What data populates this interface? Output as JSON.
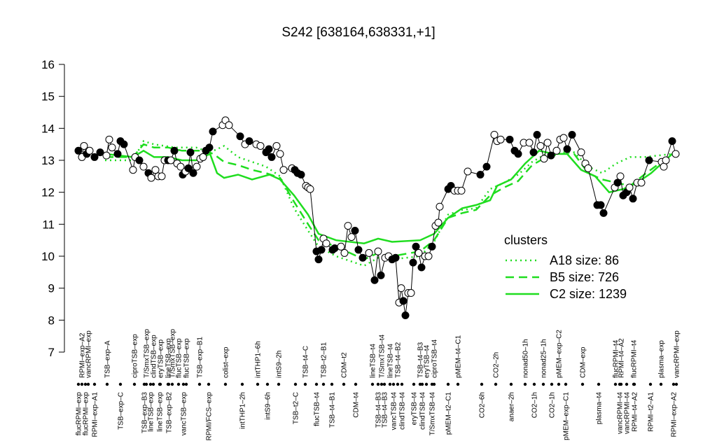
{
  "chart_data": {
    "type": "line",
    "title": "S242 [638164,638331,+1]",
    "ylim": [
      7,
      16
    ],
    "yticks": [
      7,
      8,
      9,
      10,
      11,
      12,
      13,
      14,
      15,
      16
    ],
    "xlim": [
      100,
      970
    ],
    "points": {
      "color": "#000000",
      "x": [
        112,
        117,
        120,
        124,
        128,
        135,
        143,
        152,
        156,
        160,
        168,
        172,
        177,
        190,
        193,
        199,
        205,
        212,
        216,
        222,
        226,
        231,
        235,
        240,
        244,
        249,
        253,
        258,
        261,
        265,
        269,
        272,
        276,
        281,
        286,
        290,
        294,
        299,
        304,
        318,
        322,
        327,
        343,
        350,
        356,
        366,
        372,
        380,
        384,
        388,
        395,
        400,
        405,
        417,
        421,
        425,
        430,
        437,
        440,
        443,
        452,
        455,
        459,
        462,
        466,
        475,
        478,
        487,
        492,
        497,
        502,
        507,
        512,
        518,
        527,
        535,
        540,
        544,
        550,
        555,
        560,
        565,
        570,
        573,
        576,
        579,
        583,
        587,
        590,
        594,
        598,
        602,
        607,
        612,
        617,
        622,
        626,
        628,
        640,
        644,
        649,
        654,
        659,
        668,
        686,
        695,
        706,
        710,
        715,
        728,
        735,
        740,
        748,
        756,
        762,
        767,
        772,
        777,
        782,
        787,
        795,
        800,
        805,
        810,
        817,
        830,
        836,
        840,
        853,
        858,
        862,
        878,
        882,
        886,
        890,
        895,
        899,
        904,
        910,
        916,
        927,
        945,
        948,
        951,
        960,
        965
      ],
      "values": [
        13.3,
        13.1,
        13.45,
        13.2,
        13.3,
        13.1,
        13.25,
        13.15,
        13.65,
        13.4,
        13.2,
        13.6,
        13.5,
        12.7,
        13.1,
        13.0,
        12.8,
        12.6,
        12.45,
        12.7,
        12.5,
        12.5,
        13.0,
        13.0,
        13.0,
        13.3,
        12.9,
        12.8,
        12.55,
        12.65,
        12.75,
        13.25,
        12.6,
        12.8,
        13.05,
        13.1,
        13.3,
        13.4,
        13.9,
        14.1,
        14.25,
        14.1,
        13.75,
        13.5,
        13.6,
        13.5,
        13.45,
        13.25,
        13.35,
        13.1,
        13.45,
        13.2,
        12.7,
        12.75,
        12.7,
        12.6,
        12.55,
        12.2,
        12.15,
        12.1,
        10.15,
        9.9,
        10.2,
        10.55,
        10.4,
        10.2,
        10.25,
        10.3,
        10.1,
        10.95,
        10.6,
        10.8,
        10.2,
        9.95,
        10.1,
        9.25,
        10.15,
        9.4,
        9.95,
        10.0,
        9.9,
        9.95,
        8.55,
        9.0,
        8.6,
        8.15,
        8.85,
        8.85,
        9.8,
        10.3,
        10.1,
        9.65,
        10.0,
        10.0,
        10.3,
        10.95,
        11.05,
        11.55,
        12.1,
        12.2,
        12.05,
        12.05,
        12.05,
        12.65,
        12.55,
        12.8,
        13.8,
        13.6,
        13.65,
        13.65,
        13.3,
        13.2,
        13.55,
        13.55,
        13.25,
        13.8,
        13.45,
        13.05,
        13.55,
        13.15,
        13.3,
        13.65,
        13.7,
        13.35,
        13.8,
        13.25,
        12.9,
        12.75,
        11.6,
        11.6,
        11.35,
        12.15,
        12.3,
        12.5,
        11.9,
        12.0,
        12.15,
        11.8,
        12.3,
        12.3,
        13.0,
        12.95,
        12.8,
        13.0,
        13.6,
        13.2
      ],
      "filled": [
        true,
        false,
        false,
        true,
        false,
        true,
        true,
        false,
        false,
        false,
        true,
        true,
        true,
        false,
        false,
        true,
        false,
        true,
        false,
        false,
        false,
        false,
        false,
        true,
        false,
        true,
        false,
        false,
        true,
        false,
        true,
        true,
        true,
        false,
        false,
        false,
        true,
        true,
        true,
        false,
        false,
        false,
        true,
        false,
        true,
        false,
        false,
        true,
        true,
        true,
        false,
        false,
        false,
        false,
        true,
        true,
        true,
        false,
        false,
        false,
        true,
        true,
        true,
        false,
        false,
        true,
        true,
        false,
        false,
        false,
        false,
        true,
        true,
        true,
        false,
        true,
        false,
        true,
        false,
        false,
        true,
        true,
        false,
        false,
        true,
        true,
        false,
        false,
        true,
        true,
        false,
        true,
        false,
        false,
        true,
        false,
        false,
        false,
        true,
        true,
        false,
        false,
        false,
        false,
        true,
        true,
        false,
        false,
        false,
        true,
        true,
        true,
        false,
        false,
        true,
        true,
        false,
        false,
        false,
        true,
        false,
        false,
        false,
        true,
        true,
        false,
        false,
        false,
        true,
        true,
        true,
        false,
        true,
        false,
        true,
        true,
        false,
        true,
        false,
        false,
        true,
        false,
        false,
        false,
        true,
        false
      ]
    },
    "legend_title": "clusters",
    "series": [
      {
        "name": "A18 size: 86",
        "color": "#1fdd1f",
        "dash": "dotted",
        "x": [
          150,
          190,
          205,
          220,
          250,
          280,
          300,
          320,
          340,
          360,
          380,
          400,
          420,
          440,
          455,
          480,
          520,
          540,
          560,
          600,
          620,
          640,
          660,
          680,
          700,
          720,
          740,
          760,
          780,
          800,
          820,
          840,
          860,
          880,
          900,
          920,
          960
        ],
        "values": [
          13.0,
          13.0,
          13.6,
          13.5,
          13.4,
          13.4,
          13.25,
          13.45,
          13.1,
          12.95,
          12.8,
          12.5,
          11.5,
          10.8,
          10.3,
          10.0,
          9.7,
          9.95,
          9.9,
          10.0,
          10.45,
          11.3,
          11.45,
          11.5,
          12.1,
          12.3,
          12.55,
          12.95,
          13.2,
          13.25,
          13.25,
          12.8,
          12.6,
          12.9,
          13.1,
          13.1,
          13.2
        ]
      },
      {
        "name": "B5 size: 726",
        "color": "#1fdd1f",
        "dash": "dashed",
        "x": [
          150,
          190,
          205,
          220,
          240,
          260,
          290,
          305,
          320,
          340,
          360,
          380,
          400,
          420,
          440,
          455,
          480,
          520,
          540,
          560,
          600,
          620,
          640,
          660,
          680,
          700,
          720,
          740,
          760,
          780,
          800,
          820,
          840,
          860,
          880,
          900,
          920,
          960
        ],
        "values": [
          13.1,
          13.1,
          13.5,
          13.4,
          13.4,
          13.3,
          13.3,
          13.2,
          12.95,
          12.85,
          12.7,
          12.6,
          12.45,
          11.7,
          11.0,
          10.5,
          10.3,
          9.9,
          10.1,
          10.0,
          10.15,
          10.5,
          11.2,
          11.35,
          11.45,
          11.9,
          12.15,
          12.35,
          12.85,
          13.1,
          13.2,
          13.2,
          12.6,
          12.4,
          12.3,
          12.2,
          12.55,
          13.2
        ]
      },
      {
        "name": "C2 size: 1239",
        "color": "#1fdd1f",
        "dash": "solid",
        "x": [
          150,
          190,
          205,
          220,
          240,
          260,
          280,
          300,
          310,
          320,
          340,
          360,
          385,
          400,
          420,
          440,
          455,
          480,
          520,
          540,
          560,
          600,
          620,
          640,
          660,
          680,
          700,
          710,
          730,
          750,
          770,
          790,
          810,
          830,
          850,
          870,
          890,
          910,
          930,
          960
        ],
        "values": [
          13.2,
          13.1,
          13.3,
          13.1,
          13.1,
          13.0,
          13.0,
          13.2,
          12.6,
          12.45,
          12.55,
          12.4,
          12.55,
          12.4,
          11.9,
          11.3,
          10.7,
          10.5,
          10.4,
          10.55,
          10.45,
          10.5,
          10.7,
          11.2,
          11.5,
          11.6,
          11.75,
          12.2,
          12.4,
          12.9,
          13.3,
          13.2,
          13.2,
          12.7,
          12.5,
          12.0,
          12.1,
          12.3,
          12.6,
          13.2
        ]
      }
    ],
    "top_labels": {
      "x": [
        117,
        126,
        153,
        192,
        209,
        219,
        229,
        240,
        246,
        255,
        266,
        285,
        322,
        368,
        398,
        436,
        462,
        491,
        532,
        545,
        557,
        568,
        600,
        609,
        620,
        654,
        708,
        750,
        776,
        798,
        832,
        879,
        887,
        905,
        944,
        966
      ],
      "labels": [
        "RPMI–exp–A2",
        "vancRPMI–exp",
        "TSB–exp–A",
        "ciproTSB–exp",
        "T/SmxTSB–exp",
        "clindTSB–exp",
        "eryTSB–exp",
        "lineTSB–exp",
        "T/SmxTSB–exp",
        "flucTSB–exp",
        "flucTSB–exp",
        "TSB–exp–B1",
        "colist–exp",
        "intTHP1–6h",
        "intS9–2h",
        "TSB–t4–C",
        "TSB–t2–B1",
        "CDM–t2",
        "lineTSB–t4",
        "T/SmxTSB–t4",
        "lineTSB–t4",
        "TSB–t4–B2",
        "TSB–t4–B3",
        "eryTSB–t4",
        "ciproTSB–t4",
        "pMEM–t4–C1",
        "CO2–2h",
        "nonad50–1h",
        "nonad25–1h",
        "pMEM–exp–C2",
        "CDM–exp",
        "flucRPMI–t4",
        "RPMI–t4–A2",
        "flucRPMI–t4",
        "plasma–exp",
        "vancRPMI–exp"
      ]
    },
    "bottom_labels": {
      "x": [
        112,
        122,
        135,
        172,
        206,
        215,
        228,
        241,
        262,
        298,
        346,
        382,
        422,
        452,
        474,
        508,
        540,
        549,
        562,
        574,
        591,
        603,
        617,
        640,
        688,
        730,
        763,
        788,
        808,
        855,
        885,
        895,
        906,
        929,
        962
      ],
      "labels": [
        "flucRPMI–exp",
        "flucRPMI–exp",
        "RPMI–exp–A1",
        "TSB–exp–C",
        "TSB–exp–B3",
        "lineTSB–exp",
        "lineTSB–exp",
        "TSB–exp–B2",
        "vancTSB–exp",
        "RPMI/FCS–exp",
        "intTHP1–2h",
        "intS9–6h",
        "TSB–t2–C",
        "flucTSB–t4",
        "TSB–t4–B1",
        "CDM–t4",
        "TSB–t4–B3",
        "TSB–t4–B3",
        "vancTSB–t4",
        "clindTSB–t4",
        "eryTSB–t4",
        "clindTSB–t4",
        "T/SmxTSB–t4",
        "pMEM–t2–C1",
        "CO2–6h",
        "anaer–2h",
        "CO2–1h",
        "CO2–1h",
        "pMEM–exp–C1",
        "plasma–t4",
        "vancRPMI–t4",
        "vancRPMI–t4",
        "RPMI–t4–A2",
        "RPMI–t2–A1",
        "RPMI–exp–A2"
      ]
    }
  }
}
